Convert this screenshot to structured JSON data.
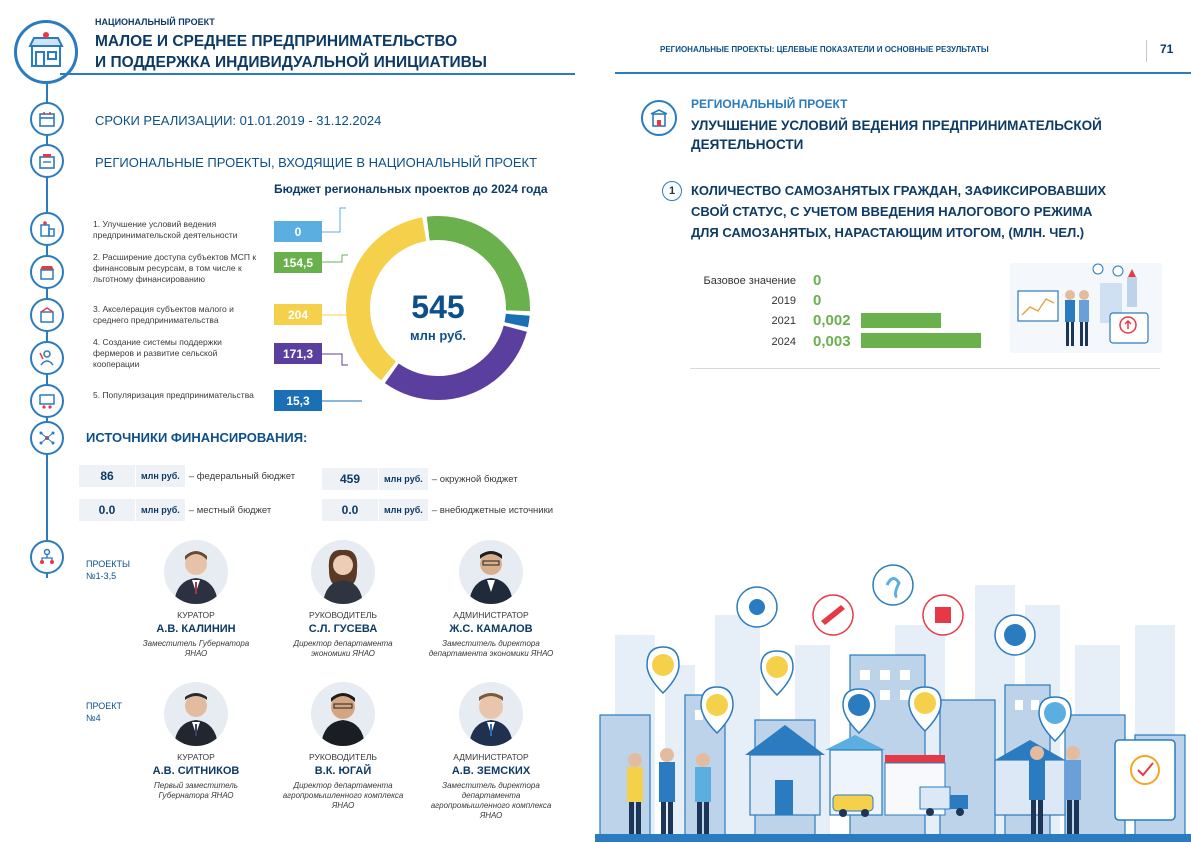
{
  "left_page": {
    "national_project": {
      "label": "НАЦИОНАЛЬНЫЙ ПРОЕКТ",
      "title_line1": "МАЛОЕ И СРЕДНЕЕ ПРЕДПРИНИМАТЕЛЬСТВО",
      "title_line2": "И ПОДДЕРЖКА ИНДИВИДУАЛЬНОЙ ИНИЦИАТИВЫ"
    },
    "timeline": "СРОКИ РЕАЛИЗАЦИИ: 01.01.2019 - 31.12.2024",
    "regional_heading": "РЕГИОНАЛЬНЫЕ ПРОЕКТЫ, ВХОДЯЩИЕ В НАЦИОНАЛЬНЫЙ ПРОЕКТ",
    "budget": {
      "title": "Бюджет региональных проектов до 2024 года",
      "total_value": "545",
      "total_unit": "млн руб.",
      "items": [
        {
          "label": "1. Улучшение условий ведения предпринимательской деятельности",
          "value": "0",
          "color": "#5aafe0"
        },
        {
          "label": "2. Расширение доступа субъектов МСП к финансовым ресурсам, в том числе к льготному финансированию",
          "value": "154,5",
          "color": "#6ab04c"
        },
        {
          "label": "3. Акселерация субъектов малого и среднего предпринимательства",
          "value": "204",
          "color": "#f5d04a"
        },
        {
          "label": "4. Создание системы поддержки фермеров и развитие сельской кооперации",
          "value": "171,3",
          "color": "#5b3f9e"
        },
        {
          "label": "5. Популяризация предпринимательства",
          "value": "15,3",
          "color": "#1a6fb5"
        }
      ]
    },
    "funding": {
      "heading": "ИСТОЧНИКИ ФИНАНСИРОВАНИЯ:",
      "unit": "млн руб.",
      "rows": [
        {
          "value": "86",
          "desc": "– федеральный бюджет"
        },
        {
          "value": "459",
          "desc": "– окружной бюджет"
        },
        {
          "value": "0.0",
          "desc": "– местный бюджет"
        },
        {
          "value": "0.0",
          "desc": "– внебюджетные источники"
        }
      ]
    },
    "projects_1": {
      "label_line1": "ПРОЕКТЫ",
      "label_line2": "№1-3,5",
      "people": [
        {
          "role": "КУРАТОР",
          "name": "А.В. КАЛИНИН",
          "desc": "Заместитель Губернатора ЯНАО"
        },
        {
          "role": "РУКОВОДИТЕЛЬ",
          "name": "С.Л. ГУСЕВА",
          "desc": "Директор департамента экономики ЯНАО"
        },
        {
          "role": "АДМИНИСТРАТОР",
          "name": "Ж.С. КАМАЛОВ",
          "desc": "Заместитель директора департамента экономики ЯНАО"
        }
      ]
    },
    "projects_2": {
      "label_line1": "ПРОЕКТ",
      "label_line2": "№4",
      "people": [
        {
          "role": "КУРАТОР",
          "name": "А.В. СИТНИКОВ",
          "desc": "Первый заместитель Губернатора ЯНАО"
        },
        {
          "role": "РУКОВОДИТЕЛЬ",
          "name": "В.К. ЮГАЙ",
          "desc": "Директор департамента агропромышленного комплекса ЯНАО"
        },
        {
          "role": "АДМИНИСТРАТОР",
          "name": "А.В. ЗЕМСКИХ",
          "desc": "Заместитель директора департамента агропромышленного комплекса ЯНАО"
        }
      ]
    }
  },
  "right_page": {
    "header": "РЕГИОНАЛЬНЫЕ ПРОЕКТЫ: ЦЕЛЕВЫЕ ПОКАЗАТЕЛИ И ОСНОВНЫЕ РЕЗУЛЬТАТЫ",
    "page_number": "71",
    "regional_project": {
      "label": "РЕГИОНАЛЬНЫЙ ПРОЕКТ",
      "title": "УЛУЧШЕНИЕ УСЛОВИЙ ВЕДЕНИЯ ПРЕДПРИНИМАТЕЛЬСКОЙ ДЕЯТЕЛЬНОСТИ"
    },
    "indicator": {
      "number": "1",
      "title_line1": "КОЛИЧЕСТВО САМОЗАНЯТЫХ ГРАЖДАН, ЗАФИКСИРОВАВШИХ",
      "title_line2": "СВОЙ СТАТУС, С УЧЕТОМ ВВЕДЕНИЯ НАЛОГОВОГО РЕЖИМА",
      "title_line3": "ДЛЯ САМОЗАНЯТЫХ, НАРАСТАЮЩИМ ИТОГОМ, (МЛН. ЧЕЛ.)",
      "rows": [
        {
          "label": "Базовое значение",
          "value": "0",
          "level": 0
        },
        {
          "label": "2019",
          "value": "0",
          "level": 0
        },
        {
          "label": "2021",
          "value": "0,002",
          "level": 0.667
        },
        {
          "label": "2024",
          "value": "0,003",
          "level": 1
        }
      ]
    }
  }
}
